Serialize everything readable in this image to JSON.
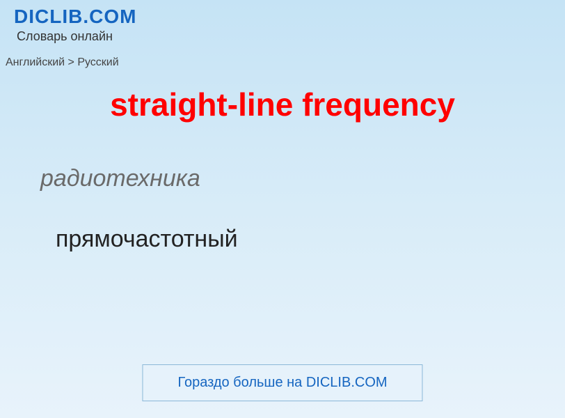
{
  "header": {
    "site_name": "DICLIB.COM",
    "site_tagline": "Словарь онлайн"
  },
  "breadcrumb": {
    "text": "Английский > Русский"
  },
  "entry": {
    "headword": "straight-line frequency",
    "category": "радиотехника",
    "translation": "прямочастотный"
  },
  "footer": {
    "more_button_label": "Гораздо больше на DICLIB.COM"
  },
  "colors": {
    "brand_blue": "#1565c0",
    "headword_red": "#ff0000",
    "category_gray": "#6a6a6a",
    "text_dark": "#222222",
    "bg_gradient_top": "#c5e3f5",
    "bg_gradient_bottom": "#e8f3fb",
    "button_bg": "#e6f2fb",
    "button_border": "#8bb8d8"
  }
}
